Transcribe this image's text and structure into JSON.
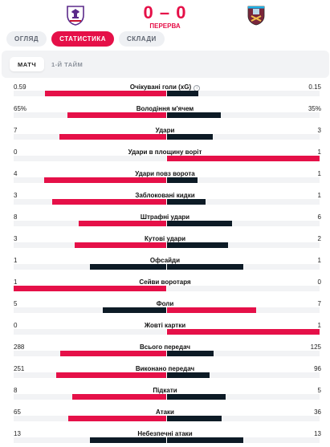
{
  "match": {
    "score": "0 – 0",
    "status": "ПЕРЕРВА",
    "home_crest": "fiorentina-crest-icon",
    "away_crest": "west-ham-crest-icon"
  },
  "tabs": [
    {
      "label": "ОГЛЯД",
      "active": false
    },
    {
      "label": "СТАТИСТИКА",
      "active": true
    },
    {
      "label": "СКЛАДИ",
      "active": false
    }
  ],
  "period_tabs": [
    {
      "label": "МАТЧ",
      "active": true
    },
    {
      "label": "1-Й ТАЙМ",
      "active": false
    }
  ],
  "colors": {
    "accent": "#e51048",
    "away_bar": "#0d1b26",
    "track": "#f2f3f5"
  },
  "stats": [
    {
      "label": "Очікувані голи (xG)",
      "home": "0.59",
      "away": "0.15",
      "home_val": 0.59,
      "away_val": 0.15,
      "info": true,
      "info_icon": "info-icon",
      "home_wins": true
    },
    {
      "label": "Володіння м'ячем",
      "home": "65%",
      "away": "35%",
      "home_val": 65,
      "away_val": 35,
      "home_wins": true
    },
    {
      "label": "Удари",
      "home": "7",
      "away": "3",
      "home_val": 7,
      "away_val": 3,
      "home_wins": true
    },
    {
      "label": "Удари в площину воріт",
      "home": "0",
      "away": "1",
      "home_val": 0,
      "away_val": 1,
      "home_wins": false
    },
    {
      "label": "Удари повз ворота",
      "home": "4",
      "away": "1",
      "home_val": 4,
      "away_val": 1,
      "home_wins": true
    },
    {
      "label": "Заблоковані кидки",
      "home": "3",
      "away": "1",
      "home_val": 3,
      "away_val": 1,
      "home_wins": true
    },
    {
      "label": "Штрафні удари",
      "home": "8",
      "away": "6",
      "home_val": 8,
      "away_val": 6,
      "home_wins": true
    },
    {
      "label": "Кутові удари",
      "home": "3",
      "away": "2",
      "home_val": 3,
      "away_val": 2,
      "home_wins": true
    },
    {
      "label": "Офсайди",
      "home": "1",
      "away": "1",
      "home_val": 1,
      "away_val": 1,
      "home_wins": "tie"
    },
    {
      "label": "Сейви воротаря",
      "home": "1",
      "away": "0",
      "home_val": 1,
      "away_val": 0,
      "home_wins": true
    },
    {
      "label": "Фоли",
      "home": "5",
      "away": "7",
      "home_val": 5,
      "away_val": 7,
      "home_wins": false
    },
    {
      "label": "Жовті картки",
      "home": "0",
      "away": "1",
      "home_val": 0,
      "away_val": 1,
      "home_wins": false
    },
    {
      "label": "Всього передач",
      "home": "288",
      "away": "125",
      "home_val": 288,
      "away_val": 125,
      "home_wins": true
    },
    {
      "label": "Виконано передач",
      "home": "251",
      "away": "96",
      "home_val": 251,
      "away_val": 96,
      "home_wins": true
    },
    {
      "label": "Підкати",
      "home": "8",
      "away": "5",
      "home_val": 8,
      "away_val": 5,
      "home_wins": true
    },
    {
      "label": "Атаки",
      "home": "65",
      "away": "36",
      "home_val": 65,
      "away_val": 36,
      "home_wins": true
    },
    {
      "label": "Небезпечні атаки",
      "home": "13",
      "away": "13",
      "home_val": 13,
      "away_val": 13,
      "home_wins": "tie"
    }
  ]
}
